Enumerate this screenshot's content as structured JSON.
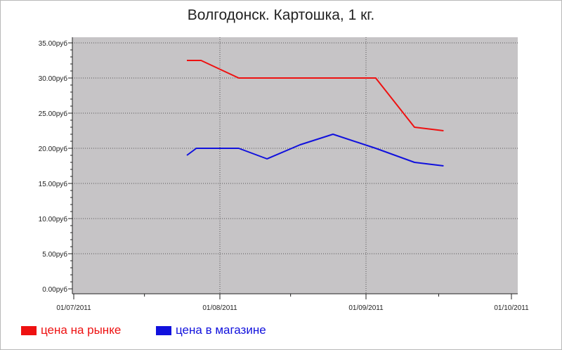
{
  "colors": {
    "market": "#ee1111",
    "store": "#1111dd",
    "plot_bg": "#c6c4c6"
  },
  "chart_data": {
    "type": "line",
    "title": "Волгодонск. Картошка, 1 кг.",
    "xlabel": "",
    "ylabel": "",
    "x_ticks": [
      "01/07/2011",
      "01/08/2011",
      "01/09/2011",
      "01/10/2011"
    ],
    "x_range": [
      "2011-07-01",
      "2011-10-01"
    ],
    "y_ticks": [
      "0.00руб",
      "5.00руб",
      "10.00руб",
      "15.00руб",
      "20.00руб",
      "25.00руб",
      "30.00руб",
      "35.00руб"
    ],
    "ylim": [
      0,
      35
    ],
    "grid": true,
    "legend_position": "bottom-left",
    "series": [
      {
        "name": "цена на рынке",
        "color": "#ee1111",
        "points": [
          {
            "x": "2011-07-25",
            "y": 32.5
          },
          {
            "x": "2011-07-28",
            "y": 32.5
          },
          {
            "x": "2011-08-05",
            "y": 30.0
          },
          {
            "x": "2011-08-23",
            "y": 30.0
          },
          {
            "x": "2011-09-03",
            "y": 30.0
          },
          {
            "x": "2011-09-11",
            "y": 23.0
          },
          {
            "x": "2011-09-17",
            "y": 22.5
          }
        ]
      },
      {
        "name": "цена в магазине",
        "color": "#1111dd",
        "points": [
          {
            "x": "2011-07-25",
            "y": 19.0
          },
          {
            "x": "2011-07-27",
            "y": 20.0
          },
          {
            "x": "2011-08-05",
            "y": 20.0
          },
          {
            "x": "2011-08-11",
            "y": 18.5
          },
          {
            "x": "2011-08-18",
            "y": 20.5
          },
          {
            "x": "2011-08-25",
            "y": 22.0
          },
          {
            "x": "2011-09-03",
            "y": 20.0
          },
          {
            "x": "2011-09-11",
            "y": 18.0
          },
          {
            "x": "2011-09-17",
            "y": 17.5
          }
        ]
      }
    ]
  }
}
